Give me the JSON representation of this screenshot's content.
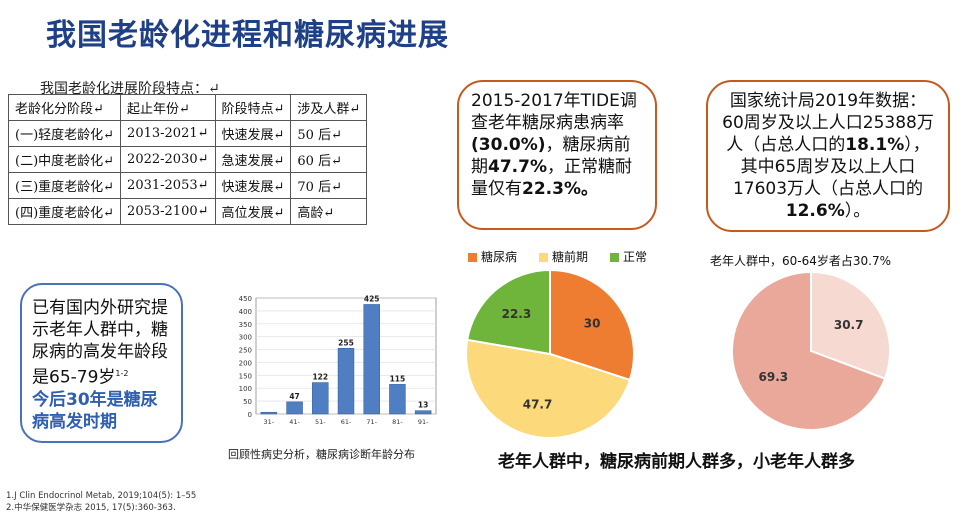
{
  "title": "我国老龄化进程和糖尿病进展",
  "aging_table": {
    "caption": "我国老龄化进展阶段特点：↵",
    "headers": [
      "老龄化分阶段↵",
      "起止年份↵",
      "阶段特点↵",
      "涉及人群↵"
    ],
    "rows": [
      [
        "(一)轻度老龄化↵",
        "2013-2021↵",
        "快速发展↵",
        "50 后↵"
      ],
      [
        "(二)中度老龄化↵",
        "2022-2030↵",
        "急速发展↵",
        "60 后↵"
      ],
      [
        "(三)重度老龄化↵",
        "2031-2053↵",
        "快速发展↵",
        "70 后↵"
      ],
      [
        "(四)重度老龄化↵",
        "2053-2100↵",
        "高位发展↵",
        "高龄↵"
      ]
    ]
  },
  "tide_box": {
    "t1": "2015-2017年TIDE调查老年糖尿病患病率",
    "v1": "30.0%)",
    "t2": "，糖尿病前期",
    "v2": "47.7%",
    "t3": "，正常糖耐量仅有",
    "v3": "22.3%。",
    "open_paren": "("
  },
  "stats_box": {
    "t1": "国家统计局2019年数据：60周岁及以上人口25388万人（占总人口的",
    "v1": "18.1%",
    "t2": "），其中65周岁及以上人口17603万人（占总人口的",
    "v2": "12.6%",
    "t3": "）。"
  },
  "study_box": {
    "t1": "已有国内外研究提示老年人群中，糖尿病的高发年龄段是65-79岁",
    "ref": "1-2",
    "t2": "今后30年是糖尿病高发时期"
  },
  "conclusion": "老年人群中，糖尿病前期人群多，小老年人群多",
  "pie2_caption": "老年人群中，60-64岁者占30.7%",
  "bar_caption": "回顾性病史分析，糖尿病诊断年龄分布",
  "references": [
    "1.J Clin Endocrinol Metab, 2019;104(5): 1–55",
    "2.中华保健医学杂志  2015, 17(5):360-363."
  ],
  "colors": {
    "title": "#1f3f86",
    "box_border": "#c65a1d",
    "bar": "#4f7fc2",
    "diabetes": "#ee7d31",
    "prediabetes": "#fcd97a",
    "normal": "#6fb53b",
    "pie2_main": "#e9a899",
    "pie2_minor": "#f6d9d1"
  },
  "chart_data": [
    {
      "type": "bar",
      "categories": [
        "31-",
        "41-",
        "51-",
        "61-",
        "71-",
        "81-",
        "91-"
      ],
      "values": [
        7,
        47,
        122,
        255,
        425,
        115,
        13
      ],
      "data_labels": [
        "",
        "47",
        "122",
        "255",
        "425",
        "115",
        "13"
      ],
      "yticks": [
        0,
        50,
        100,
        150,
        200,
        250,
        300,
        350,
        400,
        450
      ],
      "ylim": [
        0,
        450
      ]
    },
    {
      "type": "pie",
      "legend": [
        "糖尿病",
        "糖前期",
        "正常"
      ],
      "legend_position": "top",
      "values": [
        30,
        47.7,
        22.3
      ],
      "labels": [
        "30",
        "47.7",
        "22.3"
      ]
    },
    {
      "type": "pie",
      "values": [
        30.7,
        69.3
      ],
      "labels": [
        "30.7",
        "69.3"
      ]
    }
  ]
}
